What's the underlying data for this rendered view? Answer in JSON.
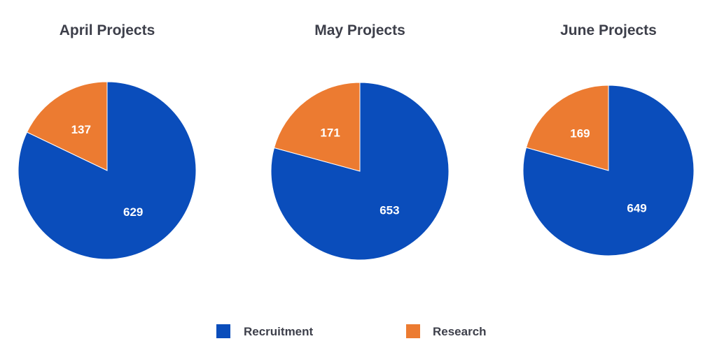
{
  "chart_data": [
    {
      "type": "pie",
      "title": "April Projects",
      "categories": [
        "Recruitment",
        "Research"
      ],
      "values": [
        629,
        137
      ]
    },
    {
      "type": "pie",
      "title": "May Projects",
      "categories": [
        "Recruitment",
        "Research"
      ],
      "values": [
        653,
        171
      ]
    },
    {
      "type": "pie",
      "title": "June Projects",
      "categories": [
        "Recruitment",
        "Research"
      ],
      "values": [
        649,
        169
      ]
    }
  ],
  "legend": {
    "placement": "bottom-center",
    "items": [
      {
        "name": "Recruitment",
        "color": "#0a4dbb"
      },
      {
        "name": "Research",
        "color": "#ec7b31"
      }
    ]
  },
  "colors": {
    "Recruitment": "#0a4dbb",
    "Research": "#ec7b31"
  }
}
